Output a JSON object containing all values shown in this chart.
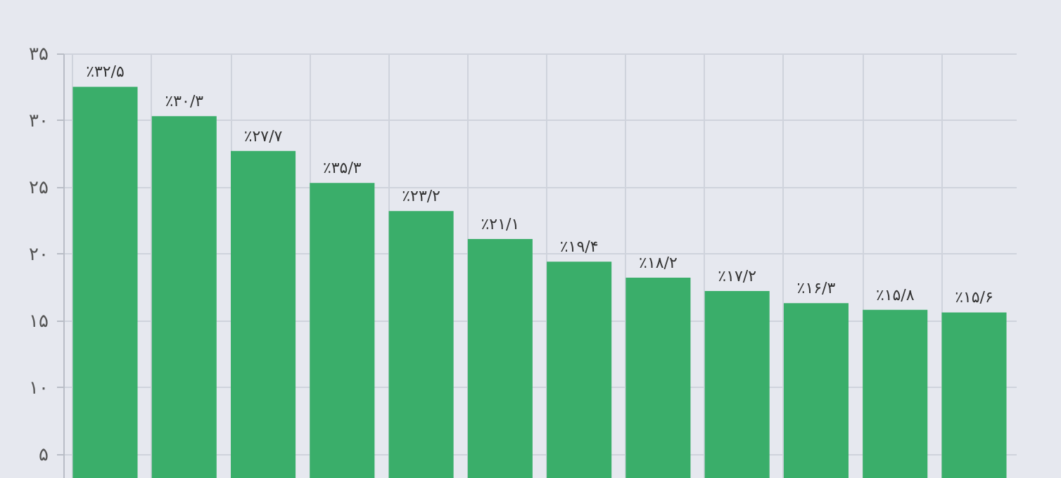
{
  "chart_data": {
    "type": "bar",
    "categories": [
      null,
      null,
      null,
      null,
      null,
      null,
      null,
      null,
      null,
      null,
      null,
      null
    ],
    "values": [
      32.5,
      30.3,
      27.7,
      25.3,
      23.2,
      21.1,
      19.4,
      18.2,
      17.2,
      16.3,
      15.8,
      15.6
    ],
    "value_labels": [
      "٪۳۲/۵",
      "٪۳۰/۳",
      "٪۲۷/۷",
      "٪۳۵/۳",
      "٪۲۳/۲",
      "٪۲۱/۱",
      "٪۱۹/۴",
      "٪۱۸/۲",
      "٪۱۷/۲",
      "٪۱۶/۳",
      "٪۱۵/۸",
      "٪۱۵/۶"
    ],
    "color": "#3aae6a",
    "ylim": [
      3.2,
      35
    ],
    "yticks": [
      {
        "value": 5,
        "label": "۵"
      },
      {
        "value": 10,
        "label": "۱۰"
      },
      {
        "value": 15,
        "label": "۱۵"
      },
      {
        "value": 20,
        "label": "۲۰"
      },
      {
        "value": 25,
        "label": "۲۵"
      },
      {
        "value": 30,
        "label": "۳۰"
      },
      {
        "value": 35,
        "label": "۳۵"
      }
    ],
    "grid": true,
    "tick_labels": "y"
  }
}
